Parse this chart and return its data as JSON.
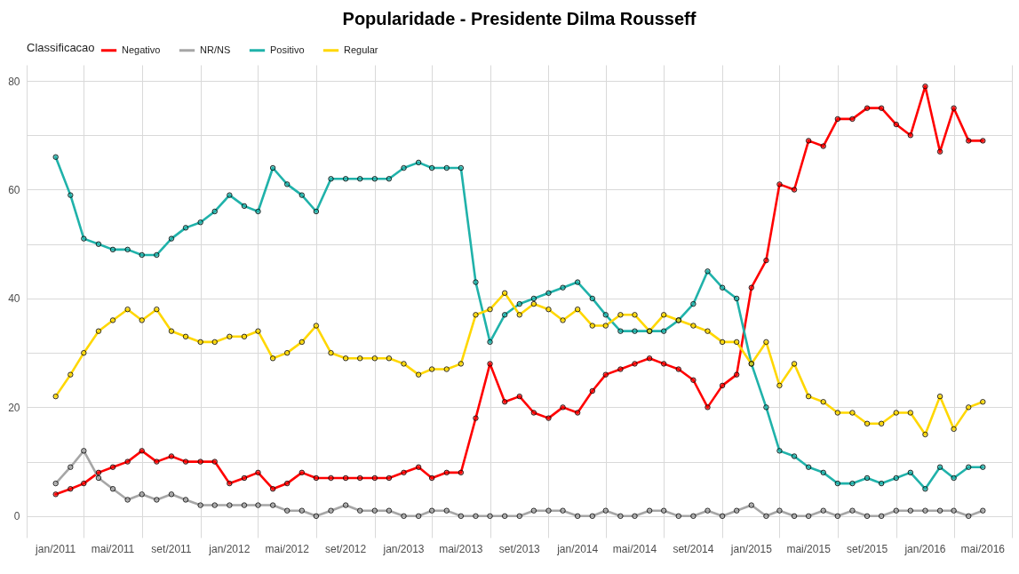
{
  "chart_data": {
    "type": "line",
    "title": "Popularidade - Presidente  Dilma Rousseff",
    "legend_title": "Classificacao",
    "legend": "top",
    "grid": true,
    "marker": "circle",
    "x": [
      "2011-01",
      "2011-02",
      "2011-03",
      "2011-04",
      "2011-05",
      "2011-06",
      "2011-07",
      "2011-08",
      "2011-09",
      "2011-10",
      "2011-11",
      "2011-12",
      "2012-01",
      "2012-02",
      "2012-03",
      "2012-04",
      "2012-05",
      "2012-06",
      "2012-07",
      "2012-08",
      "2012-09",
      "2012-10",
      "2012-11",
      "2012-12",
      "2013-01",
      "2013-02",
      "2013-03",
      "2013-04",
      "2013-05",
      "2013-06",
      "2013-07",
      "2013-08",
      "2013-09",
      "2013-10",
      "2013-11",
      "2013-12",
      "2014-01",
      "2014-02",
      "2014-03",
      "2014-04",
      "2014-05",
      "2014-06",
      "2014-07",
      "2014-08",
      "2014-09",
      "2014-10",
      "2014-11",
      "2014-12",
      "2015-01",
      "2015-02",
      "2015-03",
      "2015-04",
      "2015-05",
      "2015-06",
      "2015-07",
      "2015-08",
      "2015-09",
      "2015-10",
      "2015-11",
      "2015-12",
      "2016-01",
      "2016-02",
      "2016-03",
      "2016-04",
      "2016-05"
    ],
    "series": [
      {
        "name": "Negativo",
        "color": "#ff0000",
        "values": [
          4,
          5,
          6,
          8,
          9,
          10,
          12,
          10,
          11,
          10,
          10,
          10,
          6,
          7,
          8,
          5,
          6,
          8,
          7,
          7,
          7,
          7,
          7,
          7,
          8,
          9,
          7,
          8,
          8,
          18,
          28,
          21,
          22,
          19,
          18,
          20,
          19,
          23,
          26,
          27,
          28,
          29,
          28,
          27,
          25,
          20,
          24,
          26,
          42,
          47,
          61,
          60,
          69,
          68,
          73,
          73,
          75,
          75,
          72,
          70,
          79,
          67,
          75,
          69,
          69
        ]
      },
      {
        "name": "NR/NS",
        "color": "#a6a6a6",
        "values": [
          6,
          9,
          12,
          7,
          5,
          3,
          4,
          3,
          4,
          3,
          2,
          2,
          2,
          2,
          2,
          2,
          1,
          1,
          0,
          1,
          2,
          1,
          1,
          1,
          0,
          0,
          1,
          1,
          0,
          0,
          0,
          0,
          0,
          1,
          1,
          1,
          0,
          0,
          1,
          0,
          0,
          1,
          1,
          0,
          0,
          1,
          0,
          1,
          2,
          0,
          1,
          0,
          0,
          1,
          0,
          1,
          0,
          0,
          1,
          1,
          1,
          1,
          1,
          0,
          1
        ]
      },
      {
        "name": "Positivo",
        "color": "#20b2aa",
        "values": [
          66,
          59,
          51,
          50,
          49,
          49,
          48,
          48,
          51,
          53,
          54,
          56,
          59,
          57,
          56,
          64,
          61,
          59,
          56,
          62,
          62,
          62,
          62,
          62,
          64,
          65,
          64,
          64,
          64,
          43,
          32,
          37,
          39,
          40,
          41,
          42,
          43,
          40,
          37,
          34,
          34,
          34,
          34,
          36,
          39,
          45,
          42,
          40,
          28,
          20,
          12,
          11,
          9,
          8,
          6,
          6,
          7,
          6,
          7,
          8,
          5,
          9,
          7,
          9,
          9
        ]
      },
      {
        "name": "Regular",
        "color": "#ffd700",
        "values": [
          22,
          26,
          30,
          34,
          36,
          38,
          36,
          38,
          34,
          33,
          32,
          32,
          33,
          33,
          34,
          29,
          30,
          32,
          35,
          30,
          29,
          29,
          29,
          29,
          28,
          26,
          27,
          27,
          28,
          37,
          38,
          41,
          37,
          39,
          38,
          36,
          38,
          35,
          35,
          37,
          37,
          34,
          37,
          36,
          35,
          34,
          32,
          32,
          28,
          32,
          24,
          28,
          22,
          21,
          19,
          19,
          17,
          17,
          19,
          19,
          15,
          22,
          16,
          20,
          21
        ]
      }
    ],
    "xlim": [
      "2010-11",
      "2016-07"
    ],
    "xticks": [
      {
        "value": "2010-11",
        "label": null
      },
      {
        "value": "2011-01",
        "label": "jan/2011"
      },
      {
        "value": "2011-03",
        "label": null
      },
      {
        "value": "2011-05",
        "label": "mai/2011"
      },
      {
        "value": "2011-07",
        "label": null
      },
      {
        "value": "2011-09",
        "label": "set/2011"
      },
      {
        "value": "2011-11",
        "label": null
      },
      {
        "value": "2012-01",
        "label": "jan/2012"
      },
      {
        "value": "2012-03",
        "label": null
      },
      {
        "value": "2012-05",
        "label": "mai/2012"
      },
      {
        "value": "2012-07",
        "label": null
      },
      {
        "value": "2012-09",
        "label": "set/2012"
      },
      {
        "value": "2012-11",
        "label": null
      },
      {
        "value": "2013-01",
        "label": "jan/2013"
      },
      {
        "value": "2013-03",
        "label": null
      },
      {
        "value": "2013-05",
        "label": "mai/2013"
      },
      {
        "value": "2013-07",
        "label": null
      },
      {
        "value": "2013-09",
        "label": "set/2013"
      },
      {
        "value": "2013-11",
        "label": null
      },
      {
        "value": "2014-01",
        "label": "jan/2014"
      },
      {
        "value": "2014-03",
        "label": null
      },
      {
        "value": "2014-05",
        "label": "mai/2014"
      },
      {
        "value": "2014-07",
        "label": null
      },
      {
        "value": "2014-09",
        "label": "set/2014"
      },
      {
        "value": "2014-11",
        "label": null
      },
      {
        "value": "2015-01",
        "label": "jan/2015"
      },
      {
        "value": "2015-03",
        "label": null
      },
      {
        "value": "2015-05",
        "label": "mai/2015"
      },
      {
        "value": "2015-07",
        "label": null
      },
      {
        "value": "2015-09",
        "label": "set/2015"
      },
      {
        "value": "2015-11",
        "label": null
      },
      {
        "value": "2016-01",
        "label": "jan/2016"
      },
      {
        "value": "2016-03",
        "label": null
      },
      {
        "value": "2016-05",
        "label": "mai/2016"
      },
      {
        "value": "2016-07",
        "label": null
      }
    ],
    "ylim": [
      -3.95,
      82.95
    ],
    "yticks": [
      0,
      {
        "value": 10,
        "label": null
      },
      20,
      {
        "value": 30,
        "label": null
      },
      40,
      {
        "value": 50,
        "label": null
      },
      60,
      {
        "value": 70,
        "label": null
      },
      80
    ]
  }
}
